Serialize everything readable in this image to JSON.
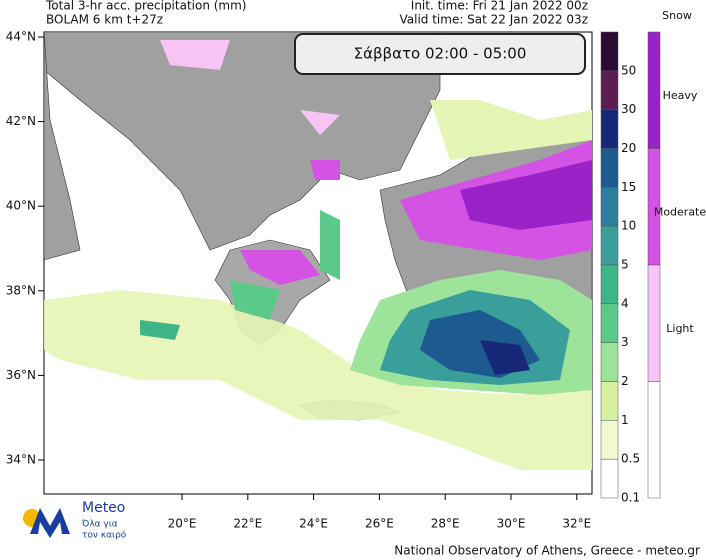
{
  "header": {
    "title": "Total 3-hr acc. precipitation (mm)",
    "model": "BOLAM 6 km t+27z",
    "init_time": "Init. time: Fri 21 Jan 2022 00z",
    "valid_time": "Valid time: Sat 22 Jan 2022 03z"
  },
  "map": {
    "period": "Σάββατο 02:00 - 05:00",
    "lat_labels": [
      "44°N",
      "42°N",
      "40°N",
      "38°N",
      "36°N",
      "34°N"
    ],
    "lon_labels": [
      "20°E",
      "22°E",
      "24°E",
      "26°E",
      "28°E",
      "30°E",
      "32°E"
    ]
  },
  "rain_scale": {
    "labels": [
      "50",
      "30",
      "20",
      "15",
      "10",
      "5",
      "4",
      "3",
      "2",
      "1",
      "0.5",
      "0.1"
    ],
    "colors": [
      "#2b0b33",
      "#5c1d52",
      "#182878",
      "#1c5a8f",
      "#2d7e9c",
      "#3a9e9a",
      "#3db586",
      "#5ac98a",
      "#9ee39a",
      "#d6efa2",
      "#f1f9cf",
      "#ffffff"
    ]
  },
  "snow_scale": {
    "title": "Snow",
    "labels": [
      "Heavy",
      "Moderate",
      "Light"
    ],
    "colors": [
      "#9a22c8",
      "#d452e4",
      "#f8c4f6",
      "#ffffff"
    ]
  },
  "logo": {
    "name": "Meteo",
    "tagline_1": "Όλα για",
    "tagline_2": "τον καιρό"
  },
  "footer": "National Observatory of Athens, Greece - meteo.gr"
}
